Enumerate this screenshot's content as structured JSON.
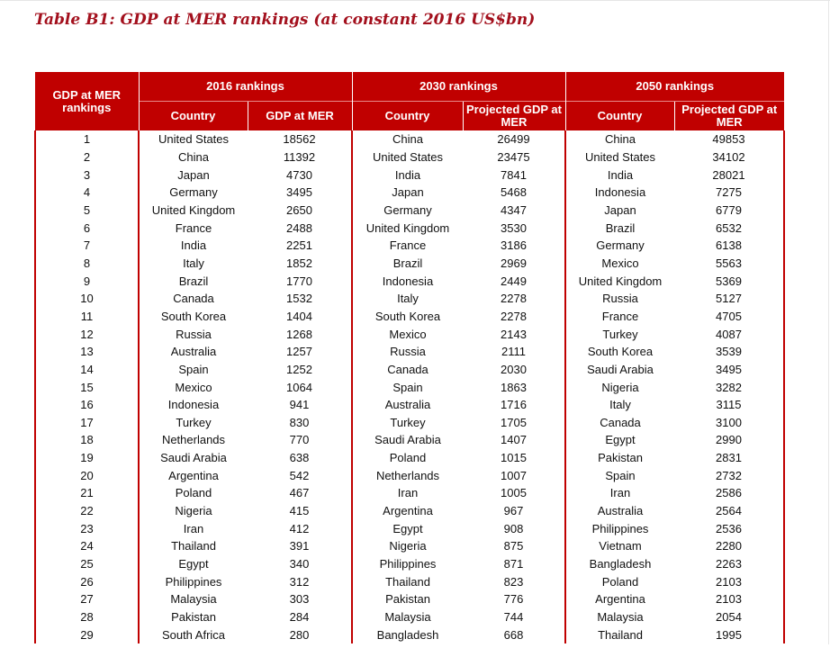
{
  "title": "Table B1: GDP at MER rankings (at constant 2016 US$bn)",
  "header": {
    "rank_col": "GDP at MER rankings",
    "groups": [
      "2016 rankings",
      "2030 rankings",
      "2050 rankings"
    ],
    "sub": [
      "Country",
      "GDP at MER",
      "Country",
      "Projected GDP at MER",
      "Country",
      "Projected GDP at MER"
    ]
  },
  "rows": [
    {
      "rank": "1",
      "c2016": "United States",
      "v2016": "18562",
      "c2030": "China",
      "v2030": "26499",
      "c2050": "China",
      "v2050": "49853"
    },
    {
      "rank": "2",
      "c2016": "China",
      "v2016": "11392",
      "c2030": "United States",
      "v2030": "23475",
      "c2050": "United States",
      "v2050": "34102"
    },
    {
      "rank": "3",
      "c2016": "Japan",
      "v2016": "4730",
      "c2030": "India",
      "v2030": "7841",
      "c2050": "India",
      "v2050": "28021"
    },
    {
      "rank": "4",
      "c2016": "Germany",
      "v2016": "3495",
      "c2030": "Japan",
      "v2030": "5468",
      "c2050": "Indonesia",
      "v2050": "7275"
    },
    {
      "rank": "5",
      "c2016": "United Kingdom",
      "v2016": "2650",
      "c2030": "Germany",
      "v2030": "4347",
      "c2050": "Japan",
      "v2050": "6779"
    },
    {
      "rank": "6",
      "c2016": "France",
      "v2016": "2488",
      "c2030": "United Kingdom",
      "v2030": "3530",
      "c2050": "Brazil",
      "v2050": "6532"
    },
    {
      "rank": "7",
      "c2016": "India",
      "v2016": "2251",
      "c2030": "France",
      "v2030": "3186",
      "c2050": "Germany",
      "v2050": "6138"
    },
    {
      "rank": "8",
      "c2016": "Italy",
      "v2016": "1852",
      "c2030": "Brazil",
      "v2030": "2969",
      "c2050": "Mexico",
      "v2050": "5563"
    },
    {
      "rank": "9",
      "c2016": "Brazil",
      "v2016": "1770",
      "c2030": "Indonesia",
      "v2030": "2449",
      "c2050": "United Kingdom",
      "v2050": "5369"
    },
    {
      "rank": "10",
      "c2016": "Canada",
      "v2016": "1532",
      "c2030": "Italy",
      "v2030": "2278",
      "c2050": "Russia",
      "v2050": "5127"
    },
    {
      "rank": "11",
      "c2016": "South Korea",
      "v2016": "1404",
      "c2030": "South Korea",
      "v2030": "2278",
      "c2050": "France",
      "v2050": "4705"
    },
    {
      "rank": "12",
      "c2016": "Russia",
      "v2016": "1268",
      "c2030": "Mexico",
      "v2030": "2143",
      "c2050": "Turkey",
      "v2050": "4087"
    },
    {
      "rank": "13",
      "c2016": "Australia",
      "v2016": "1257",
      "c2030": "Russia",
      "v2030": "2111",
      "c2050": "South Korea",
      "v2050": "3539"
    },
    {
      "rank": "14",
      "c2016": "Spain",
      "v2016": "1252",
      "c2030": "Canada",
      "v2030": "2030",
      "c2050": "Saudi Arabia",
      "v2050": "3495"
    },
    {
      "rank": "15",
      "c2016": "Mexico",
      "v2016": "1064",
      "c2030": "Spain",
      "v2030": "1863",
      "c2050": "Nigeria",
      "v2050": "3282"
    },
    {
      "rank": "16",
      "c2016": "Indonesia",
      "v2016": "941",
      "c2030": "Australia",
      "v2030": "1716",
      "c2050": "Italy",
      "v2050": "3115"
    },
    {
      "rank": "17",
      "c2016": "Turkey",
      "v2016": "830",
      "c2030": "Turkey",
      "v2030": "1705",
      "c2050": "Canada",
      "v2050": "3100"
    },
    {
      "rank": "18",
      "c2016": "Netherlands",
      "v2016": "770",
      "c2030": "Saudi Arabia",
      "v2030": "1407",
      "c2050": "Egypt",
      "v2050": "2990"
    },
    {
      "rank": "19",
      "c2016": "Saudi Arabia",
      "v2016": "638",
      "c2030": "Poland",
      "v2030": "1015",
      "c2050": "Pakistan",
      "v2050": "2831"
    },
    {
      "rank": "20",
      "c2016": "Argentina",
      "v2016": "542",
      "c2030": "Netherlands",
      "v2030": "1007",
      "c2050": "Spain",
      "v2050": "2732"
    },
    {
      "rank": "21",
      "c2016": "Poland",
      "v2016": "467",
      "c2030": "Iran",
      "v2030": "1005",
      "c2050": "Iran",
      "v2050": "2586"
    },
    {
      "rank": "22",
      "c2016": "Nigeria",
      "v2016": "415",
      "c2030": "Argentina",
      "v2030": "967",
      "c2050": "Australia",
      "v2050": "2564"
    },
    {
      "rank": "23",
      "c2016": "Iran",
      "v2016": "412",
      "c2030": "Egypt",
      "v2030": "908",
      "c2050": "Philippines",
      "v2050": "2536"
    },
    {
      "rank": "24",
      "c2016": "Thailand",
      "v2016": "391",
      "c2030": "Nigeria",
      "v2030": "875",
      "c2050": "Vietnam",
      "v2050": "2280"
    },
    {
      "rank": "25",
      "c2016": "Egypt",
      "v2016": "340",
      "c2030": "Philippines",
      "v2030": "871",
      "c2050": "Bangladesh",
      "v2050": "2263"
    },
    {
      "rank": "26",
      "c2016": "Philippines",
      "v2016": "312",
      "c2030": "Thailand",
      "v2030": "823",
      "c2050": "Poland",
      "v2050": "2103"
    },
    {
      "rank": "27",
      "c2016": "Malaysia",
      "v2016": "303",
      "c2030": "Pakistan",
      "v2030": "776",
      "c2050": "Argentina",
      "v2050": "2103"
    },
    {
      "rank": "28",
      "c2016": "Pakistan",
      "v2016": "284",
      "c2030": "Malaysia",
      "v2030": "744",
      "c2050": "Malaysia",
      "v2050": "2054"
    },
    {
      "rank": "29",
      "c2016": "South Africa",
      "v2016": "280",
      "c2030": "Bangladesh",
      "v2030": "668",
      "c2050": "Thailand",
      "v2050": "1995"
    }
  ]
}
